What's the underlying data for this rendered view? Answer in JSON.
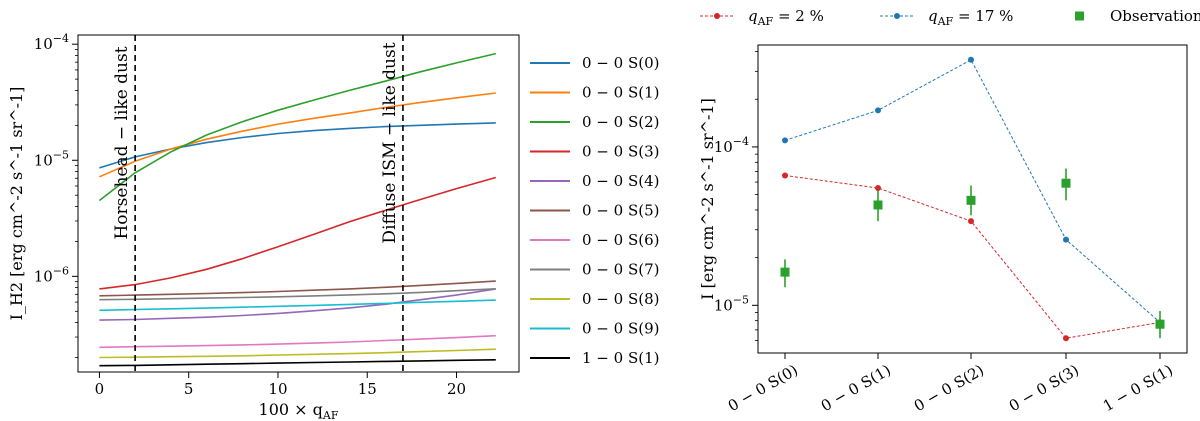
{
  "chart_data": [
    {
      "type": "line",
      "title": "",
      "xlabel": "100 × q_AF",
      "ylabel": "I_H2 [erg cm^-2 s^-1 sr^-1]",
      "yscale": "log",
      "xlim": [
        -1.2,
        23.5
      ],
      "ylim": [
        1.5e-07,
        0.00012
      ],
      "x_ticks": [
        "0",
        "5",
        "10",
        "15",
        "20"
      ],
      "x_tick_values": [
        0,
        5,
        10,
        15,
        20
      ],
      "y_ticks": [
        "10^-6",
        "10^-5",
        "10^-4"
      ],
      "y_tick_values": [
        1e-06,
        1e-05,
        0.0001
      ],
      "x": [
        0,
        2,
        4,
        6,
        8,
        10,
        12,
        14,
        16,
        18,
        20,
        22.2
      ],
      "series": [
        {
          "name": "0 − 0 S(0)",
          "color": "#1f77b4",
          "values": [
            8.6e-06,
            1.07e-05,
            1.25e-05,
            1.42e-05,
            1.57e-05,
            1.7e-05,
            1.8e-05,
            1.88e-05,
            1.95e-05,
            2e-05,
            2.05e-05,
            2.1e-05
          ]
        },
        {
          "name": "0 − 0 S(1)",
          "color": "#ff7f0e",
          "values": [
            7.2e-06,
            9.8e-06,
            1.25e-05,
            1.52e-05,
            1.78e-05,
            2.05e-05,
            2.3e-05,
            2.55e-05,
            2.85e-05,
            3.15e-05,
            3.45e-05,
            3.8e-05
          ]
        },
        {
          "name": "0 − 0 S(2)",
          "color": "#2ca02c",
          "values": [
            4.5e-06,
            7.8e-06,
            1.18e-05,
            1.65e-05,
            2.15e-05,
            2.7e-05,
            3.3e-05,
            4e-05,
            4.8e-05,
            5.8e-05,
            6.9e-05,
            8.3e-05
          ]
        },
        {
          "name": "0 − 0 S(3)",
          "color": "#d62728",
          "values": [
            7.8e-07,
            8.5e-07,
            9.7e-07,
            1.15e-06,
            1.42e-06,
            1.8e-06,
            2.3e-06,
            2.95e-06,
            3.7e-06,
            4.6e-06,
            5.7e-06,
            7.1e-06
          ]
        },
        {
          "name": "0 − 0 S(4)",
          "color": "#9467bd",
          "values": [
            4.2e-07,
            4.25e-07,
            4.35e-07,
            4.45e-07,
            4.6e-07,
            4.8e-07,
            5.05e-07,
            5.35e-07,
            5.75e-07,
            6.3e-07,
            6.9e-07,
            7.8e-07
          ]
        },
        {
          "name": "0 − 0 S(5)",
          "color": "#8c564b",
          "values": [
            6.8e-07,
            6.9e-07,
            7e-07,
            7.12e-07,
            7.25e-07,
            7.4e-07,
            7.6e-07,
            7.8e-07,
            8.05e-07,
            8.35e-07,
            8.7e-07,
            9.1e-07
          ]
        },
        {
          "name": "0 − 0 S(6)",
          "color": "#e377c2",
          "values": [
            2.45e-07,
            2.48e-07,
            2.5e-07,
            2.53e-07,
            2.57e-07,
            2.61e-07,
            2.66e-07,
            2.72e-07,
            2.8e-07,
            2.88e-07,
            2.97e-07,
            3.08e-07
          ]
        },
        {
          "name": "0 − 0 S(7)",
          "color": "#7f7f7f",
          "values": [
            6.3e-07,
            6.35e-07,
            6.42e-07,
            6.5e-07,
            6.58e-07,
            6.67e-07,
            6.78e-07,
            6.92e-07,
            7.08e-07,
            7.28e-07,
            7.52e-07,
            7.82e-07
          ]
        },
        {
          "name": "0 − 0 S(8)",
          "color": "#bcbd22",
          "values": [
            2e-07,
            2.01e-07,
            2.03e-07,
            2.05e-07,
            2.07e-07,
            2.1e-07,
            2.13e-07,
            2.16e-07,
            2.2e-07,
            2.25e-07,
            2.3e-07,
            2.36e-07
          ]
        },
        {
          "name": "0 − 0 S(9)",
          "color": "#17becf",
          "values": [
            5.1e-07,
            5.18e-07,
            5.25e-07,
            5.33e-07,
            5.42e-07,
            5.52e-07,
            5.62e-07,
            5.73e-07,
            5.85e-07,
            5.98e-07,
            6.1e-07,
            6.25e-07
          ]
        },
        {
          "name": "1 − 0 S(1)",
          "color": "#000000",
          "values": [
            1.7e-07,
            1.71e-07,
            1.73e-07,
            1.75e-07,
            1.77e-07,
            1.79e-07,
            1.81e-07,
            1.83e-07,
            1.85e-07,
            1.87e-07,
            1.89e-07,
            1.91e-07
          ]
        }
      ],
      "annotations": [
        {
          "text": "Horsehead − like dust",
          "x": 2
        },
        {
          "text": "Diffuse ISM − like dust",
          "x": 17
        }
      ]
    },
    {
      "type": "scatter",
      "title": "",
      "xlabel": "",
      "ylabel": "I [erg cm^-2 s^-1 sr^-1]",
      "yscale": "log",
      "ylim": [
        5e-06,
        0.00044
      ],
      "y_ticks": [
        "10^-5",
        "10^-4"
      ],
      "y_tick_values": [
        1e-05,
        0.0001
      ],
      "categories": [
        "0 − 0 S(0)",
        "0 − 0 S(1)",
        "0 − 0 S(2)",
        "0 − 0 S(3)",
        "1 − 0 S(1)"
      ],
      "series": [
        {
          "name": "q_AF = 2 %",
          "legend_var": "q",
          "legend_sub": "AF",
          "legend_val": " = 2 %",
          "color": "#d62728",
          "style": "dashed-line-dots",
          "values": [
            6.6e-05,
            5.5e-05,
            3.4e-05,
            6.2e-06,
            7.8e-06
          ]
        },
        {
          "name": "q_AF = 17 %",
          "legend_var": "q",
          "legend_sub": "AF",
          "legend_val": " = 17 %",
          "color": "#1f77b4",
          "style": "dashed-line-dots",
          "values": [
            0.00011,
            0.00017,
            0.000355,
            2.6e-05,
            7.8e-06
          ]
        },
        {
          "name": "Observations",
          "legend_var": "Observations",
          "legend_sub": "",
          "legend_val": "",
          "color": "#2ca02c",
          "style": "squares-errorbars",
          "values": [
            1.62e-05,
            4.3e-05,
            4.6e-05,
            5.9e-05,
            7.6e-06
          ],
          "err_low": [
            1.3e-05,
            3.4e-05,
            3.7e-05,
            4.6e-05,
            6.2e-06
          ],
          "err_high": [
            1.95e-05,
            5.3e-05,
            5.7e-05,
            7.3e-05,
            9.2e-06
          ]
        }
      ]
    }
  ]
}
